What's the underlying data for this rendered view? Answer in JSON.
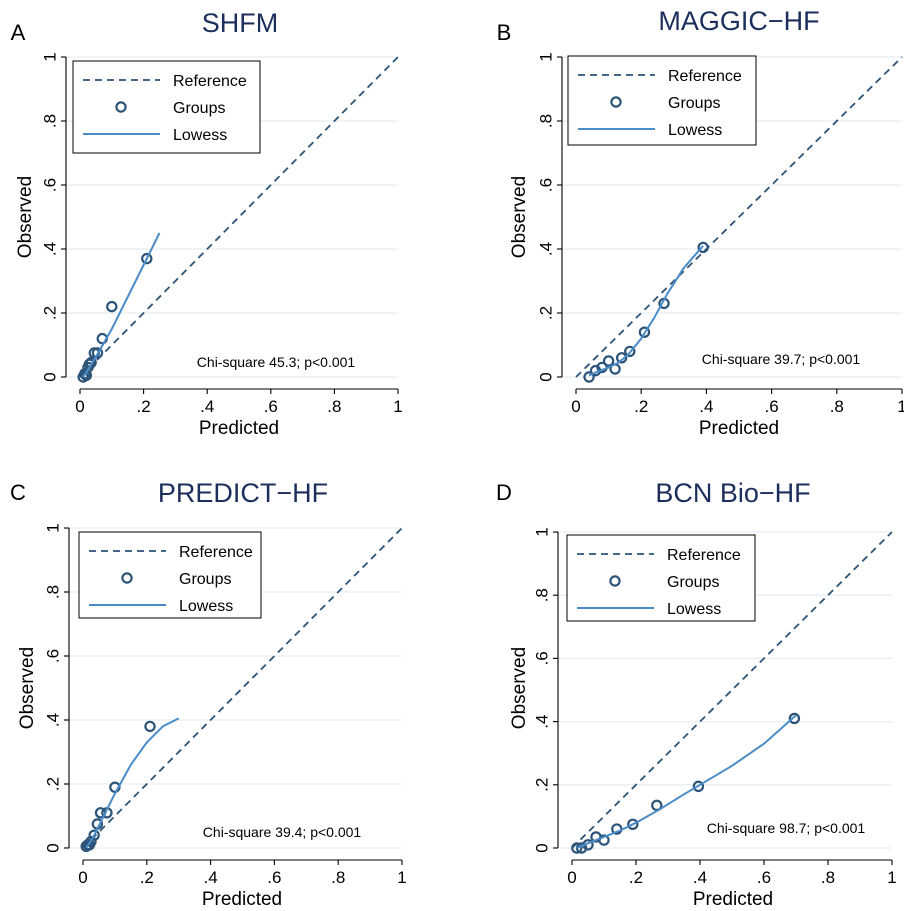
{
  "figure": {
    "legend_labels": {
      "reference": "Reference",
      "groups": "Groups",
      "lowess": "Lowess"
    },
    "colors": {
      "title": "#1c2f5c",
      "reference_line": "#2c5378",
      "groups_marker": "#2c5378",
      "lowess_line": "#4a8bc8",
      "grid": "#e8eef2",
      "axis": "#000000"
    }
  },
  "chart_data": [
    {
      "panel_label": "A",
      "type": "line",
      "title": "SHFM",
      "xlabel": "Predicted",
      "ylabel": "Observed",
      "xlim": [
        0,
        1
      ],
      "ylim": [
        0,
        1
      ],
      "x_ticks": [
        "0",
        ".2",
        ".4",
        ".6",
        ".8",
        "1"
      ],
      "y_ticks": [
        "0",
        ".2",
        ".4",
        ".6",
        ".8",
        "1"
      ],
      "grid": true,
      "legend_position": "top-left",
      "annotation": "Chi-square 45.3; p<0.001",
      "series": [
        {
          "name": "Reference",
          "type": "dashed-line",
          "x": [
            0,
            1
          ],
          "y": [
            0,
            1
          ]
        },
        {
          "name": "Groups",
          "type": "scatter",
          "x": [
            0.01,
            0.015,
            0.02,
            0.025,
            0.03,
            0.035,
            0.045,
            0.055,
            0.07,
            0.1,
            0.21
          ],
          "y": [
            0.0,
            0.01,
            0.005,
            0.03,
            0.04,
            0.045,
            0.075,
            0.075,
            0.12,
            0.22,
            0.37
          ]
        },
        {
          "name": "Lowess",
          "type": "line",
          "x": [
            0.01,
            0.03,
            0.06,
            0.1,
            0.15,
            0.2,
            0.25
          ],
          "y": [
            0.0,
            0.03,
            0.08,
            0.15,
            0.25,
            0.35,
            0.45
          ]
        }
      ]
    },
    {
      "panel_label": "B",
      "type": "line",
      "title": "MAGGIC−HF",
      "xlabel": "Predicted",
      "ylabel": "Observed",
      "xlim": [
        0,
        1
      ],
      "ylim": [
        0,
        1
      ],
      "x_ticks": [
        "0",
        ".2",
        ".4",
        ".6",
        ".8",
        "1"
      ],
      "y_ticks": [
        "0",
        ".2",
        ".4",
        ".6",
        ".8",
        "1"
      ],
      "grid": true,
      "legend_position": "top-left",
      "annotation": "Chi-square 39.7; p<0.001",
      "series": [
        {
          "name": "Reference",
          "type": "dashed-line",
          "x": [
            0,
            1
          ],
          "y": [
            0,
            1
          ]
        },
        {
          "name": "Groups",
          "type": "scatter",
          "x": [
            0.04,
            0.06,
            0.08,
            0.1,
            0.12,
            0.14,
            0.165,
            0.21,
            0.27,
            0.39
          ],
          "y": [
            0.0,
            0.02,
            0.03,
            0.05,
            0.025,
            0.06,
            0.08,
            0.14,
            0.23,
            0.405
          ]
        },
        {
          "name": "Lowess",
          "type": "line",
          "x": [
            0.04,
            0.07,
            0.1,
            0.13,
            0.16,
            0.2,
            0.24,
            0.28,
            0.33,
            0.39
          ],
          "y": [
            0.005,
            0.018,
            0.03,
            0.045,
            0.07,
            0.12,
            0.185,
            0.26,
            0.34,
            0.41
          ]
        }
      ]
    },
    {
      "panel_label": "C",
      "type": "line",
      "title": "PREDICT−HF",
      "xlabel": "Predicted",
      "ylabel": "Observed",
      "xlim": [
        0,
        1
      ],
      "ylim": [
        0,
        1
      ],
      "x_ticks": [
        "0",
        ".2",
        ".4",
        ".6",
        ".8",
        "1"
      ],
      "y_ticks": [
        "0",
        ".2",
        ".4",
        ".6",
        ".8",
        "1"
      ],
      "grid": true,
      "legend_position": "top-left",
      "annotation": "Chi-square 39.4; p<0.001",
      "series": [
        {
          "name": "Reference",
          "type": "dashed-line",
          "x": [
            0,
            1
          ],
          "y": [
            0,
            1
          ]
        },
        {
          "name": "Groups",
          "type": "scatter",
          "x": [
            0.01,
            0.015,
            0.02,
            0.025,
            0.035,
            0.045,
            0.055,
            0.075,
            0.1,
            0.21
          ],
          "y": [
            0.005,
            0.01,
            0.01,
            0.02,
            0.04,
            0.075,
            0.11,
            0.11,
            0.19,
            0.38
          ]
        },
        {
          "name": "Lowess",
          "type": "line",
          "x": [
            0.01,
            0.03,
            0.06,
            0.1,
            0.15,
            0.2,
            0.25,
            0.3
          ],
          "y": [
            0.0,
            0.03,
            0.09,
            0.17,
            0.26,
            0.33,
            0.38,
            0.405
          ]
        }
      ]
    },
    {
      "panel_label": "D",
      "type": "line",
      "title": "BCN Bio−HF",
      "xlabel": "Predicted",
      "ylabel": "Observed",
      "xlim": [
        0,
        1
      ],
      "ylim": [
        0,
        1
      ],
      "x_ticks": [
        "0",
        ".2",
        ".4",
        ".6",
        ".8",
        "1"
      ],
      "y_ticks": [
        "0",
        ".2",
        ".4",
        ".6",
        ".8",
        "1"
      ],
      "grid": true,
      "legend_position": "top-left",
      "annotation": "Chi-square 98.7; p<0.001",
      "series": [
        {
          "name": "Reference",
          "type": "dashed-line",
          "x": [
            0,
            1
          ],
          "y": [
            0,
            1
          ]
        },
        {
          "name": "Groups",
          "type": "scatter",
          "x": [
            0.015,
            0.03,
            0.05,
            0.075,
            0.1,
            0.14,
            0.19,
            0.265,
            0.395,
            0.695
          ],
          "y": [
            0.0,
            0.0,
            0.01,
            0.035,
            0.025,
            0.06,
            0.075,
            0.135,
            0.195,
            0.41
          ]
        },
        {
          "name": "Lowess",
          "type": "line",
          "x": [
            0.015,
            0.05,
            0.1,
            0.15,
            0.2,
            0.27,
            0.35,
            0.4,
            0.5,
            0.6,
            0.7
          ],
          "y": [
            0.0,
            0.015,
            0.035,
            0.055,
            0.08,
            0.12,
            0.17,
            0.2,
            0.26,
            0.33,
            0.42
          ]
        }
      ]
    }
  ]
}
